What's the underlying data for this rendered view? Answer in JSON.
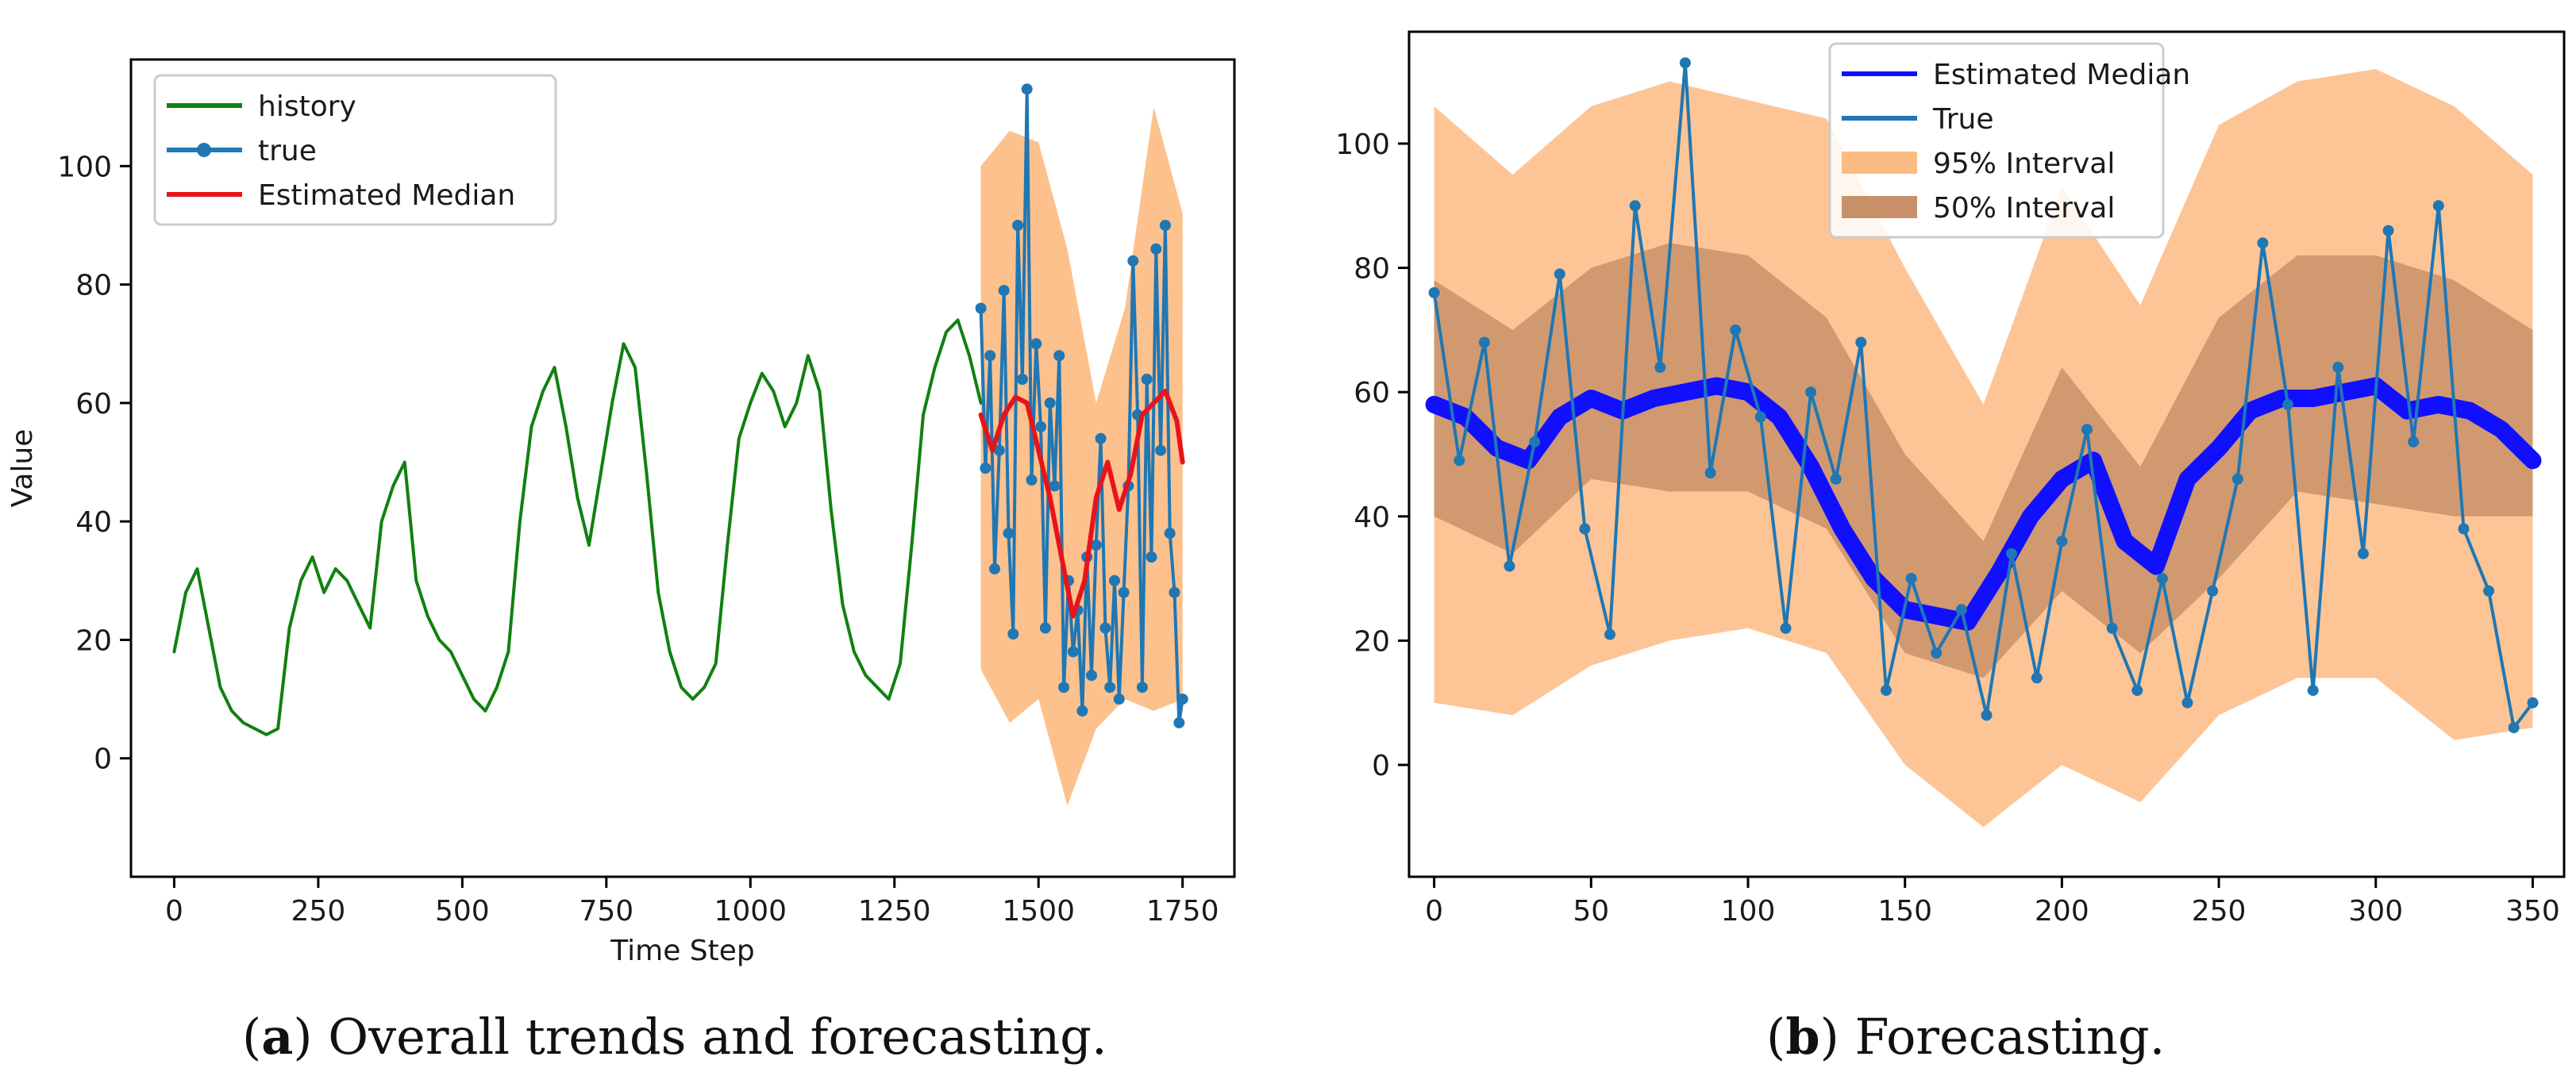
{
  "chart_data": [
    {
      "type": "line",
      "title": "",
      "xlabel": "Time Step",
      "ylabel": "Value",
      "xlim": [
        -75,
        1840
      ],
      "ylim": [
        -20,
        118
      ],
      "xticks": [
        0,
        250,
        500,
        750,
        1000,
        1250,
        1500,
        1750
      ],
      "yticks": [
        0,
        20,
        40,
        60,
        80,
        100
      ],
      "grid": false,
      "legend": {
        "position": "top-left",
        "entries": [
          "history",
          "true",
          "Estimated Median"
        ]
      },
      "series": [
        {
          "name": "history",
          "color": "#118011",
          "x": [
            0,
            20,
            40,
            60,
            80,
            100,
            120,
            140,
            160,
            180,
            200,
            220,
            240,
            260,
            280,
            300,
            320,
            340,
            360,
            380,
            400,
            420,
            440,
            460,
            480,
            500,
            520,
            540,
            560,
            580,
            600,
            620,
            640,
            660,
            680,
            700,
            720,
            740,
            760,
            780,
            800,
            820,
            840,
            860,
            880,
            900,
            920,
            940,
            960,
            980,
            1000,
            1020,
            1040,
            1060,
            1080,
            1100,
            1120,
            1140,
            1160,
            1180,
            1200,
            1220,
            1240,
            1260,
            1280,
            1300,
            1320,
            1340,
            1360,
            1380,
            1400
          ],
          "values": [
            18,
            28,
            32,
            22,
            12,
            8,
            6,
            5,
            4,
            5,
            22,
            30,
            34,
            28,
            32,
            30,
            26,
            22,
            40,
            46,
            50,
            30,
            24,
            20,
            18,
            14,
            10,
            8,
            12,
            18,
            40,
            56,
            62,
            66,
            56,
            44,
            36,
            48,
            60,
            70,
            66,
            48,
            28,
            18,
            12,
            10,
            12,
            16,
            36,
            54,
            60,
            65,
            62,
            56,
            60,
            68,
            62,
            42,
            26,
            18,
            14,
            12,
            10,
            16,
            36,
            58,
            66,
            72,
            74,
            68,
            60
          ]
        },
        {
          "name": "true",
          "color": "#1f77b4",
          "x": [
            1400,
            1408,
            1416,
            1424,
            1432,
            1440,
            1448,
            1456,
            1464,
            1472,
            1480,
            1488,
            1496,
            1504,
            1512,
            1520,
            1528,
            1536,
            1544,
            1552,
            1560,
            1568,
            1576,
            1584,
            1592,
            1600,
            1608,
            1616,
            1624,
            1632,
            1640,
            1648,
            1656,
            1664,
            1672,
            1680,
            1688,
            1696,
            1704,
            1712,
            1720,
            1728,
            1736,
            1744,
            1750
          ],
          "values": [
            76,
            49,
            68,
            32,
            52,
            79,
            38,
            21,
            90,
            64,
            113,
            47,
            70,
            56,
            22,
            60,
            46,
            68,
            12,
            30,
            18,
            25,
            8,
            34,
            14,
            36,
            54,
            22,
            12,
            30,
            10,
            28,
            46,
            84,
            58,
            12,
            64,
            34,
            86,
            52,
            90,
            38,
            28,
            6,
            10
          ]
        },
        {
          "name": "Estimated Median",
          "color": "#e8141b",
          "x": [
            1400,
            1420,
            1440,
            1460,
            1480,
            1500,
            1520,
            1540,
            1560,
            1580,
            1600,
            1620,
            1640,
            1660,
            1680,
            1700,
            1720,
            1740,
            1750
          ],
          "values": [
            58,
            52,
            58,
            61,
            60,
            52,
            44,
            34,
            24,
            30,
            44,
            50,
            42,
            48,
            58,
            60,
            62,
            57,
            50
          ]
        }
      ],
      "bands": [
        {
          "name": "95% Interval",
          "color": "#fdb679",
          "x": [
            1400,
            1450,
            1500,
            1550,
            1600,
            1650,
            1700,
            1750
          ],
          "low": [
            15,
            6,
            10,
            -8,
            5,
            10,
            8,
            10
          ],
          "high": [
            100,
            106,
            104,
            86,
            60,
            76,
            110,
            92
          ]
        }
      ]
    },
    {
      "type": "line",
      "title": "",
      "xlabel": "",
      "ylabel": "",
      "xlim": [
        -8,
        360
      ],
      "ylim": [
        -18,
        118
      ],
      "xticks": [
        0,
        50,
        100,
        150,
        200,
        250,
        300,
        350
      ],
      "yticks": [
        0,
        20,
        40,
        60,
        80,
        100
      ],
      "grid": false,
      "legend": {
        "position": "top-center",
        "entries": [
          "Estimated Median",
          "True",
          "95% Interval",
          "50% Interval"
        ]
      },
      "series": [
        {
          "name": "Estimated Median",
          "color": "#1010ff",
          "x": [
            0,
            10,
            20,
            30,
            40,
            50,
            60,
            70,
            80,
            90,
            100,
            110,
            120,
            130,
            140,
            150,
            160,
            170,
            180,
            190,
            200,
            210,
            220,
            230,
            240,
            250,
            260,
            270,
            280,
            290,
            300,
            310,
            320,
            330,
            340,
            350
          ],
          "values": [
            58,
            56,
            51,
            49,
            56,
            59,
            57,
            59,
            60,
            61,
            60,
            56,
            48,
            38,
            30,
            25,
            24,
            23,
            31,
            40,
            46,
            49,
            36,
            32,
            46,
            51,
            57,
            59,
            59,
            60,
            61,
            57,
            58,
            57,
            54,
            49
          ]
        },
        {
          "name": "True",
          "color": "#1f77b4",
          "x": [
            0,
            8,
            16,
            24,
            32,
            40,
            48,
            56,
            64,
            72,
            80,
            88,
            96,
            104,
            112,
            120,
            128,
            136,
            144,
            152,
            160,
            168,
            176,
            184,
            192,
            200,
            208,
            216,
            224,
            232,
            240,
            248,
            256,
            264,
            272,
            280,
            288,
            296,
            304,
            312,
            320,
            328,
            336,
            344,
            350
          ],
          "values": [
            76,
            49,
            68,
            32,
            52,
            79,
            38,
            21,
            90,
            64,
            113,
            47,
            70,
            56,
            22,
            60,
            46,
            68,
            12,
            30,
            18,
            25,
            8,
            34,
            14,
            36,
            54,
            22,
            12,
            30,
            10,
            28,
            46,
            84,
            58,
            12,
            64,
            34,
            86,
            52,
            90,
            38,
            28,
            6,
            10
          ]
        }
      ],
      "bands": [
        {
          "name": "95% Interval",
          "color": "#fdbb84",
          "x": [
            0,
            25,
            50,
            75,
            100,
            125,
            150,
            175,
            200,
            225,
            250,
            275,
            300,
            325,
            350
          ],
          "low": [
            10,
            8,
            16,
            20,
            22,
            18,
            0,
            -10,
            0,
            -6,
            8,
            14,
            14,
            4,
            6
          ],
          "high": [
            106,
            95,
            106,
            110,
            107,
            104,
            80,
            58,
            93,
            74,
            103,
            110,
            112,
            106,
            95
          ]
        },
        {
          "name": "50% Interval",
          "color": "#c9916a",
          "x": [
            0,
            25,
            50,
            75,
            100,
            125,
            150,
            175,
            200,
            225,
            250,
            275,
            300,
            325,
            350
          ],
          "low": [
            40,
            34,
            46,
            44,
            44,
            38,
            18,
            14,
            28,
            18,
            30,
            44,
            42,
            40,
            40
          ],
          "high": [
            78,
            70,
            80,
            84,
            82,
            72,
            50,
            36,
            64,
            48,
            72,
            82,
            82,
            78,
            70
          ]
        }
      ]
    }
  ],
  "captions": {
    "a_label": "a",
    "a_text": " Overall trends and forecasting.",
    "b_label": "b",
    "b_text": " Forecasting."
  }
}
